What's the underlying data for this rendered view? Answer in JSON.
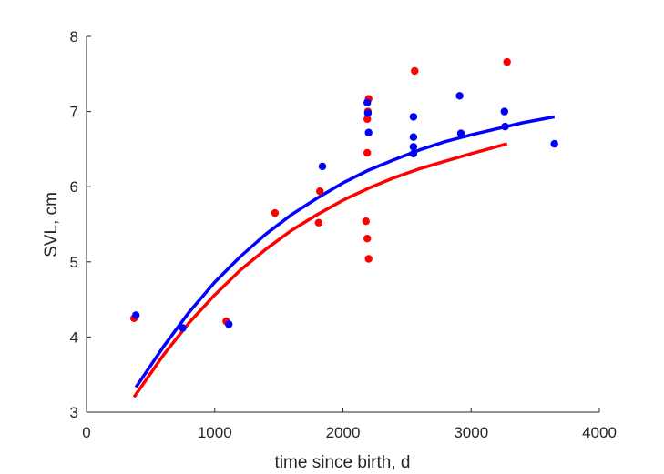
{
  "chart_data": {
    "type": "scatter",
    "xlabel": "time since birth, d",
    "ylabel": "SVL, cm",
    "xlim": [
      0,
      4000
    ],
    "ylim": [
      3,
      8
    ],
    "xticks": [
      0,
      1000,
      2000,
      3000,
      4000
    ],
    "yticks": [
      3,
      4,
      5,
      6,
      7,
      8
    ],
    "grid": false,
    "legend": "none",
    "series": [
      {
        "color": "#ff0000",
        "kind": "points",
        "points": [
          [
            370,
            4.25
          ],
          [
            1090,
            4.21
          ],
          [
            1470,
            5.65
          ],
          [
            1810,
            5.52
          ],
          [
            1820,
            5.94
          ],
          [
            2180,
            5.54
          ],
          [
            2190,
            5.31
          ],
          [
            2200,
            5.04
          ],
          [
            2190,
            6.45
          ],
          [
            2190,
            6.9
          ],
          [
            2195,
            7.0
          ],
          [
            2200,
            7.17
          ],
          [
            2560,
            7.54
          ],
          [
            3280,
            7.66
          ]
        ]
      },
      {
        "color": "#0000ff",
        "kind": "points",
        "points": [
          [
            385,
            4.29
          ],
          [
            750,
            4.12
          ],
          [
            1110,
            4.17
          ],
          [
            1840,
            6.27
          ],
          [
            2190,
            7.12
          ],
          [
            2195,
            6.98
          ],
          [
            2200,
            6.72
          ],
          [
            2550,
            6.93
          ],
          [
            2550,
            6.66
          ],
          [
            2550,
            6.53
          ],
          [
            2550,
            6.44
          ],
          [
            2910,
            7.21
          ],
          [
            2920,
            6.71
          ],
          [
            3260,
            7.0
          ],
          [
            3265,
            6.8
          ],
          [
            3650,
            6.57
          ]
        ]
      },
      {
        "color": "#ff0000",
        "kind": "line",
        "points": [
          [
            370,
            3.2
          ],
          [
            600,
            3.76
          ],
          [
            800,
            4.19
          ],
          [
            1000,
            4.56
          ],
          [
            1200,
            4.89
          ],
          [
            1400,
            5.17
          ],
          [
            1600,
            5.42
          ],
          [
            1800,
            5.63
          ],
          [
            2000,
            5.82
          ],
          [
            2200,
            5.98
          ],
          [
            2400,
            6.12
          ],
          [
            2600,
            6.24
          ],
          [
            2800,
            6.34
          ],
          [
            3000,
            6.44
          ],
          [
            3280,
            6.57
          ]
        ]
      },
      {
        "color": "#0000ff",
        "kind": "line",
        "points": [
          [
            385,
            3.33
          ],
          [
            600,
            3.87
          ],
          [
            800,
            4.33
          ],
          [
            1000,
            4.73
          ],
          [
            1200,
            5.07
          ],
          [
            1400,
            5.37
          ],
          [
            1600,
            5.63
          ],
          [
            1800,
            5.85
          ],
          [
            2000,
            6.05
          ],
          [
            2200,
            6.22
          ],
          [
            2400,
            6.36
          ],
          [
            2600,
            6.49
          ],
          [
            2800,
            6.6
          ],
          [
            3000,
            6.69
          ],
          [
            3200,
            6.77
          ],
          [
            3400,
            6.85
          ],
          [
            3650,
            6.93
          ]
        ]
      }
    ]
  }
}
